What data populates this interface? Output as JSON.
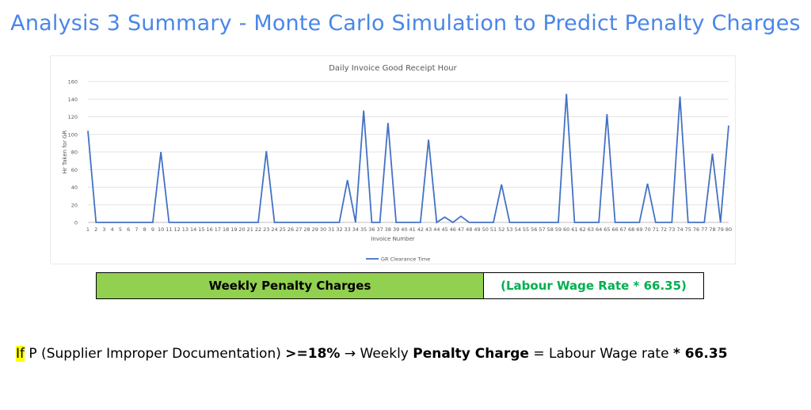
{
  "slide": {
    "title": "Analysis 3 Summary - Monte Carlo Simulation to Predict Penalty Charges"
  },
  "chart_data": {
    "type": "line",
    "title": "Daily Invoice Good Receipt Hour",
    "xlabel": "Invoice Number",
    "ylabel": "Hr Taken for GR",
    "ylim": [
      0,
      160
    ],
    "yticks": [
      0,
      20,
      40,
      60,
      80,
      100,
      120,
      140,
      160
    ],
    "grid": true,
    "legend_placement": "bottom-center",
    "x": [
      1,
      2,
      3,
      4,
      5,
      6,
      7,
      8,
      9,
      10,
      11,
      12,
      13,
      14,
      15,
      16,
      17,
      18,
      19,
      20,
      21,
      22,
      23,
      24,
      25,
      26,
      27,
      28,
      29,
      30,
      31,
      32,
      33,
      34,
      35,
      36,
      37,
      38,
      39,
      40,
      41,
      42,
      43,
      44,
      45,
      46,
      47,
      48,
      49,
      50,
      51,
      52,
      53,
      54,
      55,
      56,
      57,
      58,
      59,
      60,
      61,
      62,
      63,
      64,
      65,
      66,
      67,
      68,
      69,
      70,
      71,
      72,
      73,
      74,
      75,
      76,
      77,
      78,
      79,
      80
    ],
    "series": [
      {
        "name": "GR Clearance Time",
        "color": "#4472c4",
        "values": [
          104,
          0,
          0,
          0,
          0,
          0,
          0,
          0,
          0,
          80,
          0,
          0,
          0,
          0,
          0,
          0,
          0,
          0,
          0,
          0,
          0,
          0,
          81,
          0,
          0,
          0,
          0,
          0,
          0,
          0,
          0,
          0,
          48,
          0,
          127,
          0,
          0,
          113,
          0,
          0,
          0,
          0,
          94,
          0,
          6,
          0,
          7,
          0,
          0,
          0,
          0,
          43,
          0,
          0,
          0,
          0,
          0,
          0,
          0,
          146,
          0,
          0,
          0,
          0,
          123,
          0,
          0,
          0,
          0,
          44,
          0,
          0,
          0,
          143,
          0,
          0,
          0,
          78,
          0,
          110
        ]
      }
    ]
  },
  "penalty_table": {
    "label": "Weekly Penalty Charges",
    "value": "(Labour Wage Rate * 66.35)",
    "label_bg": "#92d050",
    "value_color": "#00b050"
  },
  "rule": {
    "if_word": "If",
    "condition": " P (Supplier Improper Documentation) ",
    "threshold": ">=18%",
    "arrow_text": " → Weekly ",
    "penalty_term": "Penalty Charge",
    "equals_text": " = Labour Wage rate ",
    "multiplier": "* 66.35"
  }
}
